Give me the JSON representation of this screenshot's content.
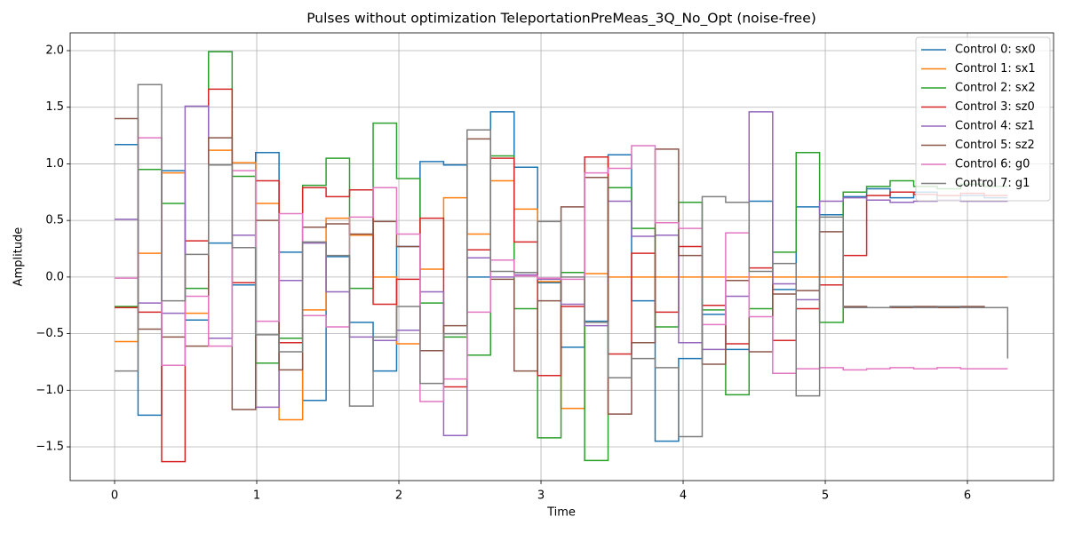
{
  "chart_data": {
    "type": "step",
    "title": "Pulses without optimization TeleportationPreMeas_3Q_No_Opt (noise-free)",
    "xlabel": "Time",
    "ylabel": "Amplitude",
    "x": [
      0,
      0.165,
      0.331,
      0.496,
      0.661,
      0.827,
      0.992,
      1.157,
      1.323,
      1.488,
      1.653,
      1.819,
      1.984,
      2.149,
      2.315,
      2.48,
      2.645,
      2.811,
      2.976,
      3.141,
      3.307,
      3.472,
      3.637,
      3.803,
      3.968,
      4.134,
      4.299,
      4.464,
      4.63,
      4.795,
      4.96,
      5.126,
      5.291,
      5.456,
      5.622,
      5.787,
      5.952,
      6.118,
      6.283
    ],
    "series": [
      {
        "name": "Control 0: sx0",
        "color": "#1f77b4",
        "values": [
          1.17,
          -1.22,
          0.94,
          -0.38,
          0.3,
          -0.07,
          1.1,
          0.22,
          -1.09,
          0.18,
          -0.4,
          -0.83,
          0.27,
          1.02,
          0.99,
          0.0,
          1.46,
          0.97,
          -0.05,
          -0.62,
          -0.39,
          1.08,
          -0.21,
          -1.45,
          -0.72,
          -0.33,
          -0.64,
          0.67,
          -0.11,
          0.62,
          0.55,
          0.71,
          0.78,
          0.7,
          0.75,
          0.68,
          0.72,
          0.7,
          0.7
        ]
      },
      {
        "name": "Control 1: sx1",
        "color": "#ff7f0e",
        "values": [
          -0.57,
          0.21,
          0.92,
          -0.32,
          1.12,
          1.01,
          0.65,
          -1.26,
          -0.29,
          0.52,
          0.37,
          0.0,
          -0.59,
          0.07,
          0.7,
          0.38,
          0.85,
          0.6,
          -0.04,
          -1.16,
          0.03,
          0,
          0,
          0,
          0,
          0,
          0,
          0,
          0,
          0,
          0,
          0,
          0,
          0,
          0,
          0,
          0,
          0,
          0
        ]
      },
      {
        "name": "Control 2: sx2",
        "color": "#2ca02c",
        "values": [
          -0.26,
          0.95,
          0.65,
          -0.1,
          1.99,
          0.89,
          -0.76,
          -0.54,
          0.81,
          1.05,
          -0.1,
          1.36,
          0.87,
          -0.23,
          -0.53,
          -0.69,
          1.07,
          -0.28,
          -1.42,
          0.04,
          -1.62,
          0.79,
          0.43,
          -0.44,
          0.66,
          -0.29,
          -1.04,
          -0.28,
          0.22,
          1.1,
          -0.4,
          0.75,
          0.8,
          0.85,
          0.8,
          0.78,
          0.82,
          0.8,
          0.8
        ]
      },
      {
        "name": "Control 3: sz0",
        "color": "#d62728",
        "values": [
          -0.27,
          -0.31,
          -1.63,
          0.32,
          1.66,
          -0.05,
          0.85,
          -0.58,
          0.79,
          0.71,
          0.77,
          -0.24,
          -0.02,
          0.52,
          -0.97,
          0.24,
          1.05,
          0.31,
          -0.87,
          -0.26,
          1.06,
          -0.68,
          0.21,
          -0.31,
          0.27,
          -0.25,
          -0.59,
          0.08,
          -0.56,
          -0.28,
          -0.07,
          0.19,
          0.72,
          0.75,
          0.73,
          0.72,
          0.74,
          0.72,
          0.72
        ]
      },
      {
        "name": "Control 4: sz1",
        "color": "#9467bd",
        "values": [
          0.51,
          -0.23,
          -0.32,
          1.51,
          -0.54,
          0.37,
          -1.15,
          -0.03,
          0.3,
          -0.13,
          -0.53,
          -0.56,
          -0.47,
          -0.13,
          -1.4,
          0.17,
          0.0,
          0.02,
          -0.02,
          -0.24,
          -0.43,
          0.67,
          0.36,
          0.37,
          -0.58,
          -0.64,
          -0.17,
          1.46,
          -0.06,
          -0.2,
          0.67,
          0.7,
          0.68,
          0.66,
          0.67,
          0.68,
          0.67,
          0.67,
          0.67
        ]
      },
      {
        "name": "Control 5: sz2",
        "color": "#8c564b",
        "values": [
          1.4,
          -0.46,
          -0.53,
          -0.61,
          1.23,
          -1.17,
          0.5,
          -0.82,
          0.44,
          0.47,
          0.38,
          0.49,
          0.27,
          -0.65,
          -0.43,
          1.22,
          -0.02,
          -0.83,
          -0.21,
          0.62,
          0.88,
          -1.21,
          -0.58,
          1.13,
          0.19,
          -0.77,
          -0.03,
          -0.66,
          -0.15,
          -0.12,
          0.4,
          -0.26,
          -0.27,
          -0.27,
          -0.26,
          -0.27,
          -0.26,
          -0.27,
          -0.27
        ]
      },
      {
        "name": "Control 6: g0",
        "color": "#e377c2",
        "values": [
          -0.01,
          1.23,
          -0.78,
          -0.17,
          -0.61,
          0.94,
          -0.39,
          0.56,
          -0.34,
          -0.44,
          0.53,
          0.79,
          0.38,
          -1.1,
          -0.9,
          -0.31,
          0.15,
          0.01,
          -0.01,
          -0.02,
          0.92,
          0.96,
          1.16,
          0.48,
          0.43,
          -0.42,
          0.39,
          -0.35,
          -0.85,
          -0.81,
          -0.8,
          -0.82,
          -0.81,
          -0.8,
          -0.81,
          -0.8,
          -0.81,
          -0.81,
          -0.81
        ]
      },
      {
        "name": "Control 7: g1",
        "color": "#7f7f7f",
        "values": [
          -0.83,
          1.7,
          -0.21,
          0.2,
          0.99,
          0.26,
          -0.51,
          -0.66,
          0.31,
          0.19,
          -1.14,
          -0.53,
          -0.26,
          -0.94,
          -0.5,
          1.3,
          0.05,
          0.04,
          0.49,
          0.0,
          -0.4,
          -0.89,
          -0.72,
          -0.8,
          -1.41,
          0.71,
          0.66,
          0.05,
          0.12,
          -1.05,
          0.53,
          -0.27,
          -0.27,
          -0.26,
          -0.27,
          -0.26,
          -0.27,
          -0.27,
          -0.72
        ]
      }
    ],
    "xlim": [
      -0.3125,
      6.606
    ],
    "ylim": [
      -1.798,
      2.157
    ],
    "xticks": [
      0,
      1,
      2,
      3,
      4,
      5,
      6
    ],
    "yticks": [
      {
        "value": -1.5,
        "label": "−1.5"
      },
      {
        "value": -1.0,
        "label": "−1.0"
      },
      {
        "value": -0.5,
        "label": "−0.5"
      },
      {
        "value": 0.0,
        "label": "0.0"
      },
      {
        "value": 0.5,
        "label": "0.5"
      },
      {
        "value": 1.0,
        "label": "1.0"
      },
      {
        "value": 1.5,
        "label": "1.5"
      },
      {
        "value": 2.0,
        "label": "2.0"
      }
    ],
    "grid": true,
    "legend": "upper right"
  }
}
